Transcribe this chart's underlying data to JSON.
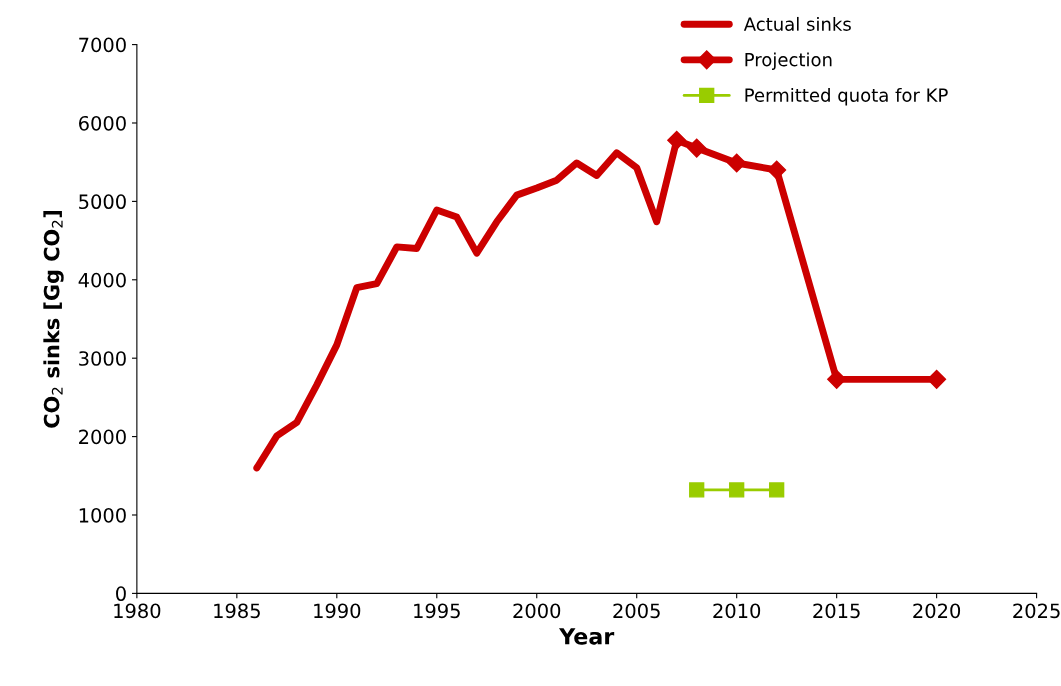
{
  "chart_data": {
    "type": "line",
    "xlabel": "Year",
    "ylabel": "CO$_{2}$ sinks [Gg CO$_{2}$]",
    "xlim": [
      1980,
      2025
    ],
    "xticks": [
      1980,
      1985,
      1990,
      1995,
      2000,
      2005,
      2010,
      2015,
      2020,
      2025
    ],
    "ylim": [
      0,
      7000
    ],
    "yticks": [
      0,
      1000,
      2000,
      3000,
      4000,
      5000,
      6000,
      7000
    ],
    "grid": false,
    "legend": "top right",
    "series": [
      {
        "name": "Actual sinks",
        "color": "#cc0000",
        "marker": "none",
        "x": [
          1986,
          1987,
          1988,
          1989,
          1990,
          1991,
          1992,
          1993,
          1994,
          1995,
          1996,
          1997,
          1998,
          1999,
          2000,
          2001,
          2002,
          2003,
          2004,
          2005,
          2006,
          2007
        ],
        "values": [
          1600,
          2010,
          2180,
          2660,
          3170,
          3900,
          3950,
          4420,
          4400,
          4890,
          4800,
          4340,
          4740,
          5080,
          5170,
          5270,
          5490,
          5330,
          5620,
          5430,
          4740,
          5780
        ]
      },
      {
        "name": "Projection",
        "color": "#cc0000",
        "marker": "diamond",
        "x": [
          2007,
          2008,
          2010,
          2012,
          2015,
          2020
        ],
        "values": [
          5780,
          5680,
          5490,
          5400,
          2730,
          2730
        ]
      },
      {
        "name": "Permitted quota for KP",
        "color": "#99cc00",
        "marker": "square",
        "x": [
          2008,
          2010,
          2012
        ],
        "values": [
          1320,
          1320,
          1320
        ]
      }
    ]
  }
}
